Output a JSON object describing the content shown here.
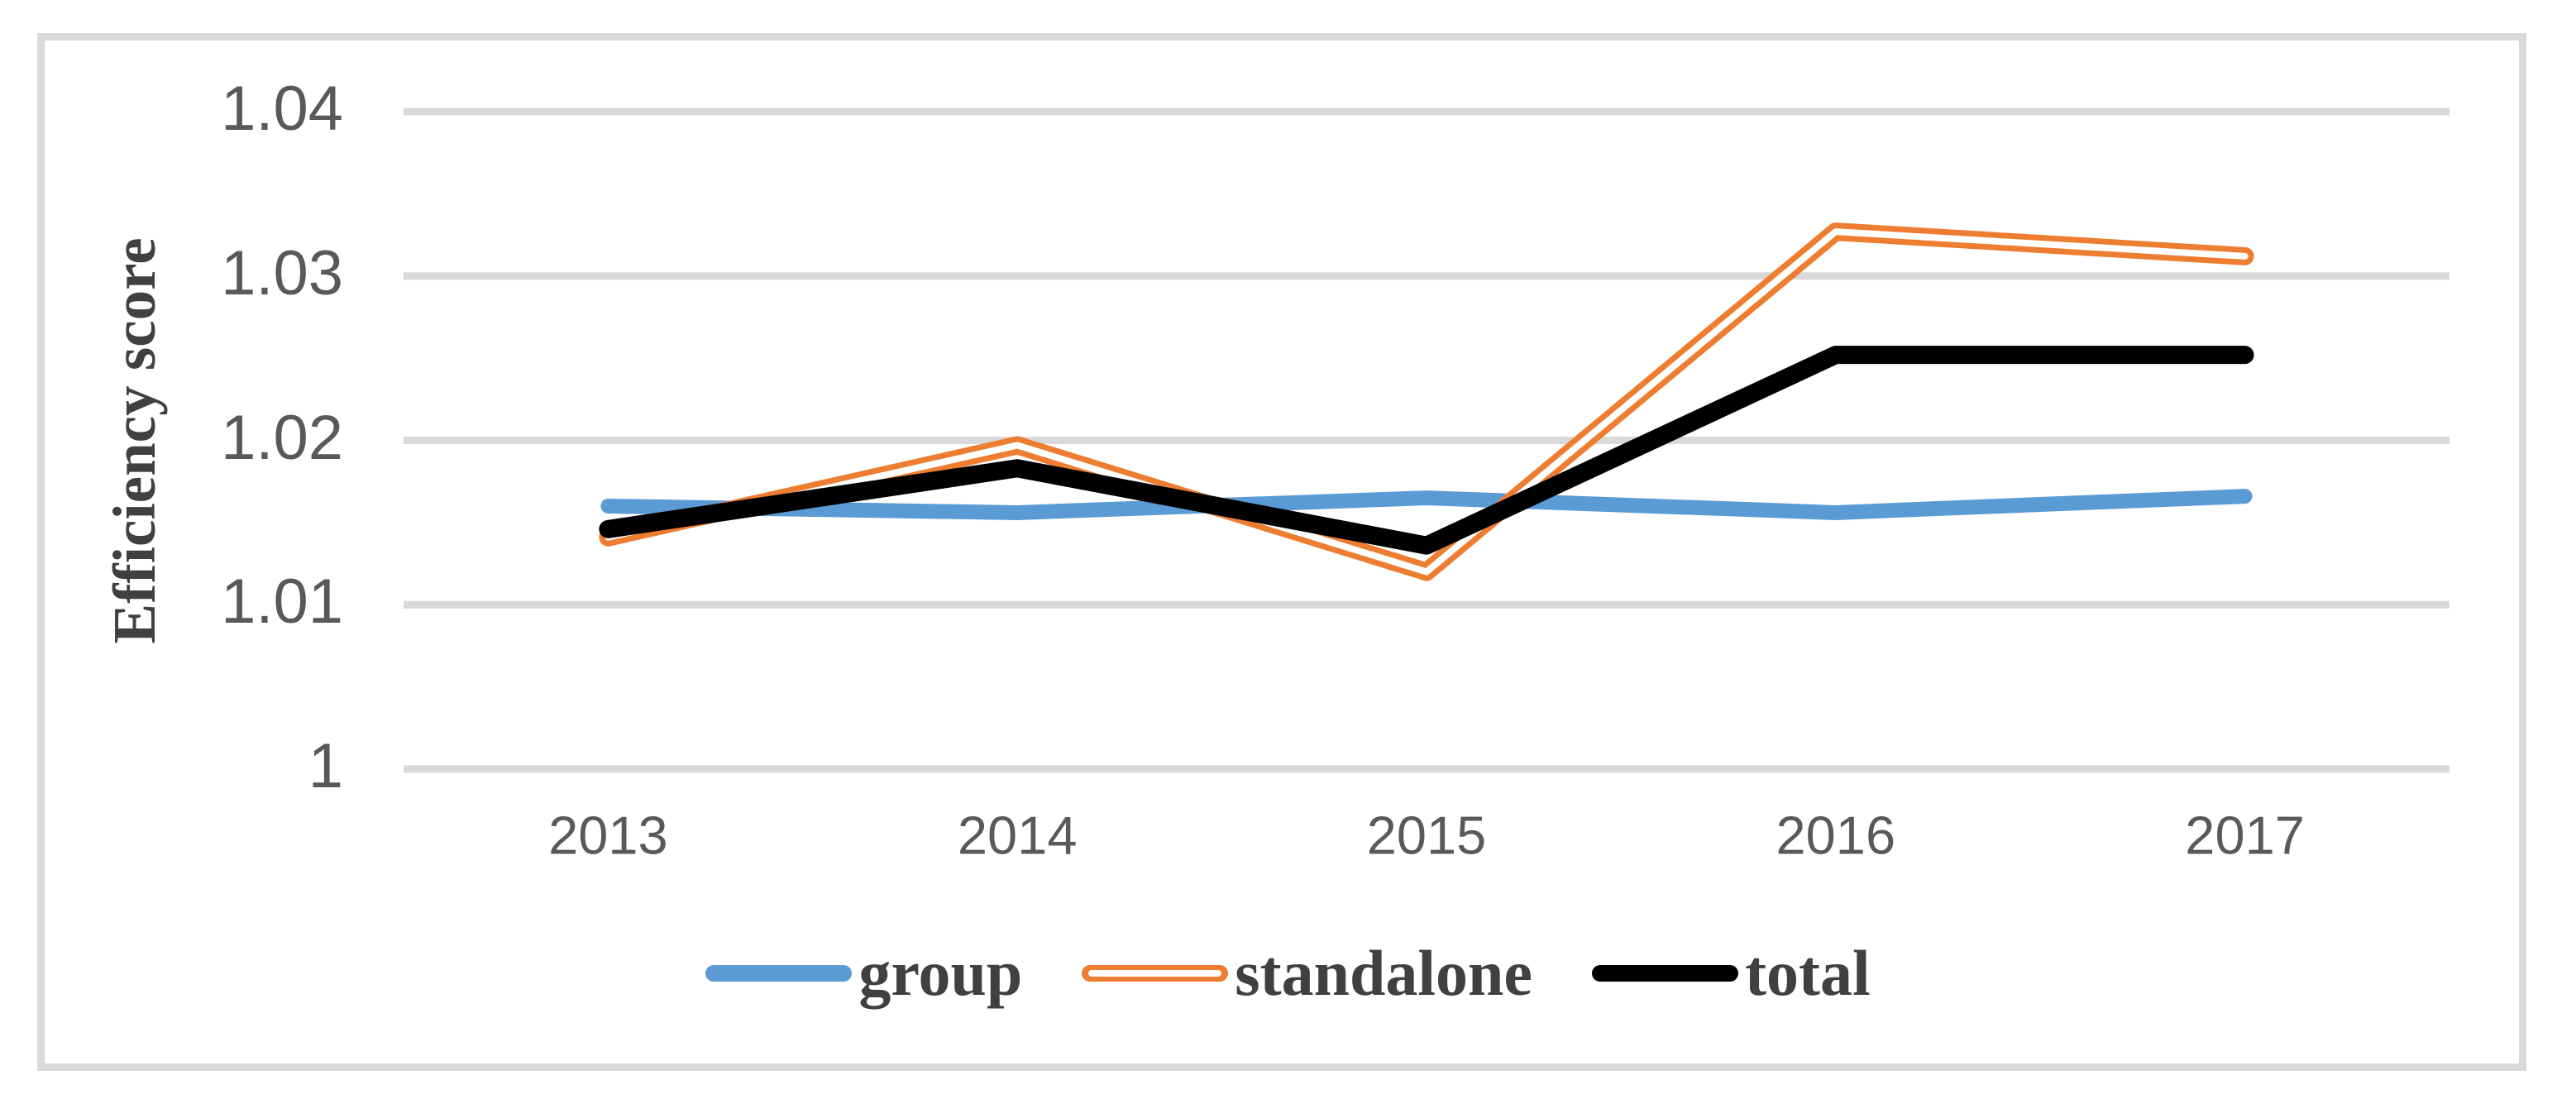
{
  "figure": {
    "background": "#FFFFFF",
    "frame_color": "#D9D9D9"
  },
  "chart_data": {
    "type": "line",
    "title": "",
    "xlabel": "",
    "ylabel": "Efficiency score",
    "categories": [
      "2013",
      "2014",
      "2015",
      "2016",
      "2017"
    ],
    "series": [
      {
        "name": "group",
        "color": "#5B9BD5",
        "style": "solid",
        "values": [
          1.016,
          1.0156,
          1.0165,
          1.0156,
          1.0166
        ]
      },
      {
        "name": "standalone",
        "color": "#ED7D31",
        "style": "double",
        "values": [
          1.0141,
          1.0197,
          1.012,
          1.0327,
          1.0312
        ]
      },
      {
        "name": "total",
        "color": "#000000",
        "style": "solid",
        "values": [
          1.0146,
          1.0183,
          1.0136,
          1.0252,
          1.0252
        ]
      }
    ],
    "ylim": [
      1.0,
      1.04
    ],
    "yticks": [
      1.0,
      1.01,
      1.02,
      1.03,
      1.04
    ],
    "ytick_labels": [
      "1",
      "1.01",
      "1.02",
      "1.03",
      "1.04"
    ],
    "grid": "horizontal gridlines on",
    "gridline_color": "#D9D9D9",
    "tick_label_color": "#595959",
    "axis_title_color": "#404040",
    "legend_position": "bottom"
  }
}
